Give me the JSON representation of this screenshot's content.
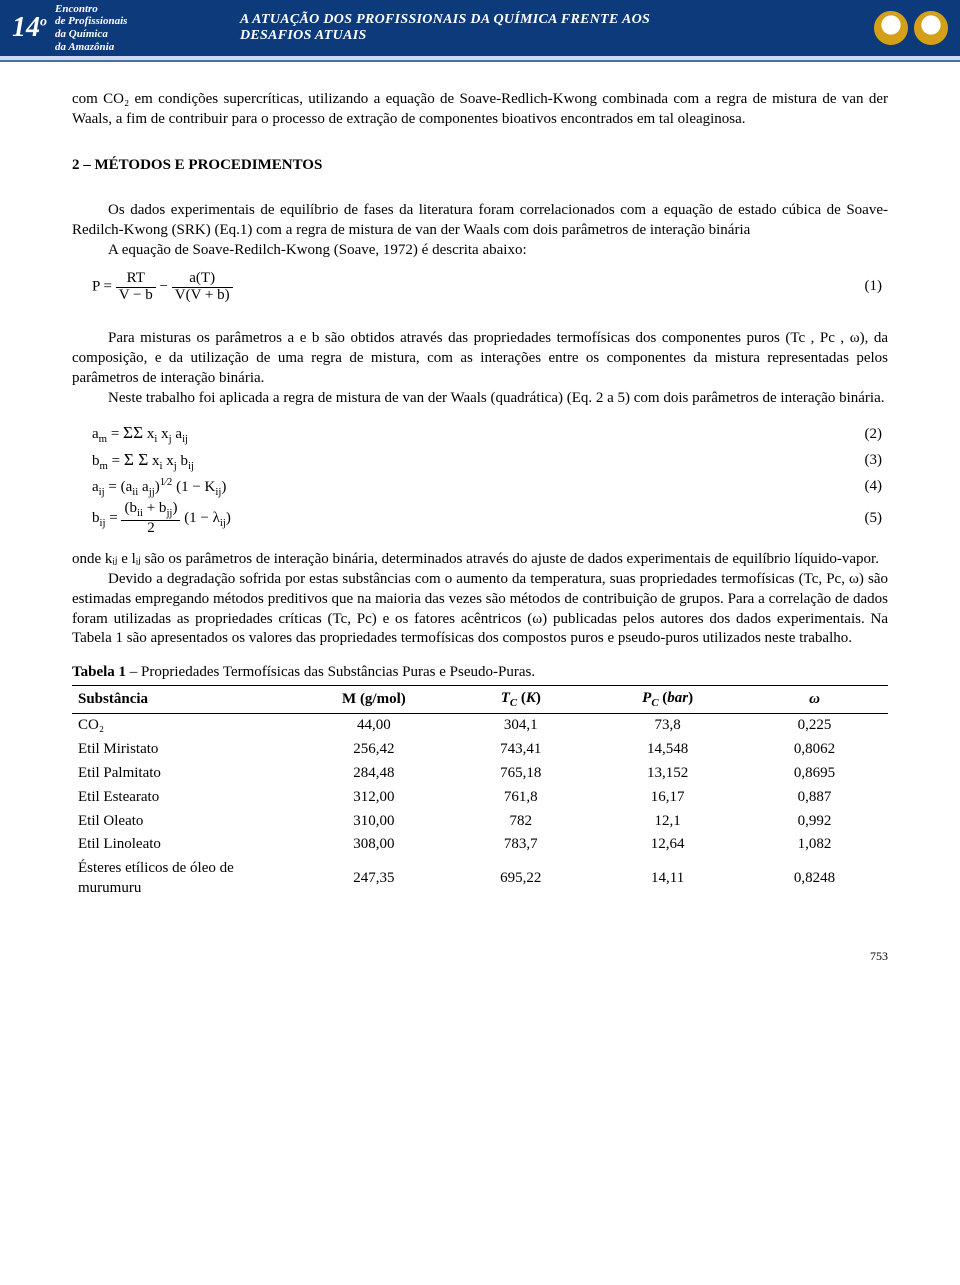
{
  "header": {
    "event_number": "14",
    "event_number_suffix": "o",
    "event_lines": [
      "Encontro",
      "de Profissionais",
      "da Química",
      "da Amazônia"
    ],
    "title": "A ATUAÇÃO DOS PROFISSIONAIS DA QUÍMICA FRENTE AOS DESAFIOS ATUAIS",
    "bar_bg": "#0d3a7a",
    "accent_bg": "#ccd9ee",
    "accent_border": "#4a6fa5"
  },
  "body": {
    "intro": "com CO₂ em condições supercríticas, utilizando a equação de Soave-Redlich-Kwong combinada com a regra de mistura de van der Waals, a fim de contribuir para o processo de extração de componentes bioativos encontrados em tal oleaginosa.",
    "section2_title": "2 – MÉTODOS E PROCEDIMENTOS",
    "p2a": "Os dados experimentais de equilíbrio de fases da literatura foram correlacionados com a equação de estado cúbica de Soave-Redilch-Kwong (SRK) (Eq.1) com a regra de mistura de van der Waals com dois parâmetros de interação binária",
    "p2b": "A equação de Soave-Redilch-Kwong (Soave, 1972) é descrita abaixo:",
    "eq1_label": "(1)",
    "p3": "Para misturas os parâmetros a e b são obtidos através das propriedades termofísicas dos componentes puros (Tc , Pc , ω), da composição, e da utilização de uma regra de mistura, com as interações entre os componentes da mistura representadas pelos parâmetros de interação binária.",
    "p4": "Neste trabalho foi aplicada a regra de mistura de van der Waals (quadrática) (Eq. 2 a 5) com dois parâmetros de interação binária.",
    "eq2_label": "(2)",
    "eq3_label": "(3)",
    "eq4_label": "(4)",
    "eq5_label": "(5)",
    "p5": "onde kᵢⱼ e lᵢⱼ são os parâmetros de interação binária, determinados através do ajuste de dados experimentais de equilíbrio líquido-vapor.",
    "p6": "Devido a degradação sofrida por estas substâncias com o aumento da temperatura, suas propriedades termofísicas (Tc, Pc, ω) são estimadas empregando métodos preditivos que na maioria das vezes são métodos de contribuição de grupos. Para a correlação de dados foram utilizadas as propriedades críticas (Tc, Pc) e os fatores acêntricos (ω) publicadas pelos autores dos dados experimentais. Na Tabela 1 são apresentados os valores das propriedades termofísicas dos compostos puros e pseudo-puros utilizados neste trabalho.",
    "table_caption_bold": "Tabela 1",
    "table_caption_rest": " – Propriedades Termofísicas das Substâncias Puras e Pseudo-Puras."
  },
  "table": {
    "columns": [
      "Substância",
      "M (g/mol)",
      "T_C (K)",
      "P_C (bar)",
      "ω"
    ],
    "col_widths": [
      "28%",
      "18%",
      "18%",
      "18%",
      "18%"
    ],
    "rows": [
      [
        "CO₂",
        "44,00",
        "304,1",
        "73,8",
        "0,225"
      ],
      [
        "Etil Miristato",
        "256,42",
        "743,41",
        "14,548",
        "0,8062"
      ],
      [
        "Etil Palmitato",
        "284,48",
        "765,18",
        "13,152",
        "0,8695"
      ],
      [
        "Etil Estearato",
        "312,00",
        "761,8",
        "16,17",
        "0,887"
      ],
      [
        "Etil Oleato",
        "310,00",
        "782",
        "12,1",
        "0,992"
      ],
      [
        "Etil Linoleato",
        "308,00",
        "783,7",
        "12,64",
        "1,082"
      ],
      [
        "Ésteres etílicos de óleo de murumuru",
        "247,35",
        "695,22",
        "14,11",
        "0,8248"
      ]
    ]
  },
  "page_number": "753"
}
